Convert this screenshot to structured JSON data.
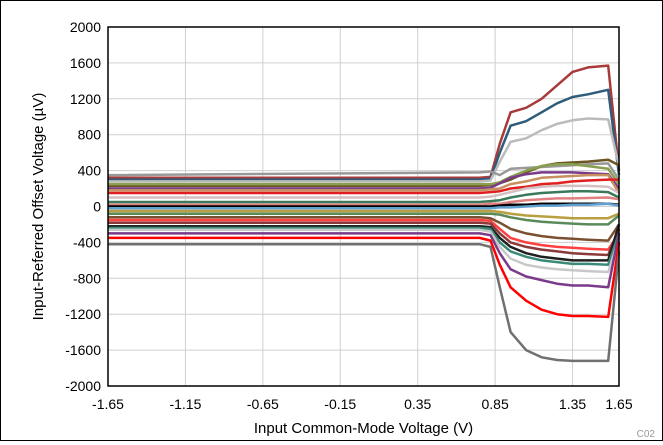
{
  "chart_data": {
    "type": "line",
    "title": "",
    "xlabel": "Input Common-Mode Voltage (V)",
    "ylabel": "Input-Referred Offset Voltage (µV)",
    "code_label": "C02",
    "xlim": [
      -1.65,
      1.65
    ],
    "ylim": [
      -2000,
      2000
    ],
    "grid": true,
    "legend": "none",
    "x_ticks": [
      -1.65,
      -1.15,
      -0.65,
      -0.15,
      0.35,
      0.85,
      1.35,
      1.65
    ],
    "x_tick_labels": [
      "-1.65",
      "-1.15",
      "-0.65",
      "-0.15",
      "0.35",
      "0.85",
      "1.35",
      "1.65"
    ],
    "y_ticks": [
      2000,
      1600,
      1200,
      800,
      400,
      0,
      -400,
      -800,
      -1200,
      -1600,
      -2000
    ],
    "y_tick_labels": [
      "2000",
      "1600",
      "1200",
      "800",
      "400",
      "0",
      "-400",
      "-800",
      "-1200",
      "-1600",
      "-2000"
    ],
    "x": [
      -1.65,
      0.75,
      0.82,
      0.88,
      0.95,
      1.05,
      1.15,
      1.25,
      1.35,
      1.45,
      1.58,
      1.65
    ],
    "series": [
      {
        "color": "#a83a3a",
        "values": [
          320,
          320,
          330,
          700,
          1050,
          1100,
          1200,
          1350,
          1500,
          1550,
          1570,
          400
        ]
      },
      {
        "color": "#2e5c7a",
        "values": [
          300,
          300,
          310,
          600,
          900,
          950,
          1050,
          1150,
          1220,
          1250,
          1300,
          350
        ]
      },
      {
        "color": "#bbbbbb",
        "values": [
          280,
          280,
          290,
          500,
          720,
          760,
          850,
          920,
          960,
          980,
          970,
          450
        ]
      },
      {
        "color": "#999999",
        "values": [
          350,
          380,
          390,
          350,
          420,
          430,
          440,
          450,
          460,
          470,
          480,
          300
        ]
      },
      {
        "color": "#6b5520",
        "values": [
          230,
          230,
          240,
          260,
          300,
          380,
          450,
          480,
          490,
          500,
          520,
          460
        ]
      },
      {
        "color": "#8aa050",
        "values": [
          250,
          250,
          250,
          270,
          330,
          400,
          450,
          470,
          470,
          450,
          420,
          250
        ]
      },
      {
        "color": "#7a3a8a",
        "values": [
          200,
          200,
          210,
          260,
          320,
          360,
          380,
          380,
          380,
          370,
          360,
          200
        ]
      },
      {
        "color": "#c69060",
        "values": [
          180,
          180,
          190,
          200,
          250,
          280,
          320,
          330,
          340,
          350,
          350,
          150
        ]
      },
      {
        "color": "#e02020",
        "values": [
          150,
          150,
          160,
          170,
          200,
          220,
          250,
          260,
          280,
          290,
          300,
          300
        ]
      },
      {
        "color": "#d4c0c0",
        "values": [
          100,
          100,
          110,
          130,
          160,
          200,
          220,
          230,
          230,
          230,
          220,
          150
        ]
      },
      {
        "color": "#3a7a5a",
        "values": [
          50,
          50,
          60,
          70,
          100,
          130,
          150,
          160,
          170,
          170,
          160,
          100
        ]
      },
      {
        "color": "#e08080",
        "values": [
          20,
          20,
          30,
          30,
          50,
          70,
          80,
          90,
          90,
          95,
          100,
          80
        ]
      },
      {
        "color": "#000000",
        "values": [
          0,
          0,
          0,
          10,
          20,
          20,
          30,
          30,
          30,
          30,
          30,
          20
        ]
      },
      {
        "color": "#60a0d0",
        "values": [
          -20,
          -20,
          -20,
          -10,
          -10,
          0,
          10,
          10,
          20,
          20,
          30,
          10
        ]
      },
      {
        "color": "#b8a040",
        "values": [
          -50,
          -50,
          -50,
          -60,
          -80,
          -100,
          -110,
          -120,
          -130,
          -130,
          -130,
          -80
        ]
      },
      {
        "color": "#5a8a5a",
        "values": [
          -80,
          -80,
          -80,
          -90,
          -120,
          -150,
          -170,
          -180,
          -190,
          -200,
          -200,
          -100
        ]
      },
      {
        "color": "#7a5030",
        "values": [
          -120,
          -120,
          -130,
          -180,
          -250,
          -300,
          -330,
          -350,
          -360,
          -370,
          -380,
          -200
        ]
      },
      {
        "color": "#ff4040",
        "values": [
          -150,
          -150,
          -160,
          -250,
          -350,
          -400,
          -430,
          -450,
          -460,
          -470,
          -480,
          -300
        ]
      },
      {
        "color": "#8a3a3a",
        "values": [
          -180,
          -180,
          -190,
          -300,
          -400,
          -450,
          -480,
          -500,
          -520,
          -530,
          -540,
          -250
        ]
      },
      {
        "color": "#202020",
        "values": [
          -220,
          -220,
          -230,
          -350,
          -450,
          -520,
          -560,
          -580,
          -600,
          -600,
          -600,
          -200
        ]
      },
      {
        "color": "#3a8a7a",
        "values": [
          -240,
          -240,
          -250,
          -400,
          -500,
          -560,
          -600,
          -620,
          -640,
          -640,
          -650,
          -300
        ]
      },
      {
        "color": "#c8c8c8",
        "values": [
          -260,
          -260,
          -280,
          -450,
          -580,
          -650,
          -680,
          -700,
          -710,
          -720,
          -730,
          -350
        ]
      },
      {
        "color": "#7a3a8a",
        "values": [
          -300,
          -300,
          -320,
          -520,
          -700,
          -780,
          -820,
          -860,
          -880,
          -880,
          -900,
          -300
        ]
      },
      {
        "color": "#ff0000",
        "values": [
          -350,
          -350,
          -380,
          -650,
          -900,
          -1050,
          -1150,
          -1200,
          -1220,
          -1220,
          -1230,
          -400
        ]
      },
      {
        "color": "#707070",
        "values": [
          -420,
          -420,
          -450,
          -900,
          -1400,
          -1600,
          -1680,
          -1710,
          -1720,
          -1720,
          -1720,
          -500
        ]
      }
    ]
  }
}
